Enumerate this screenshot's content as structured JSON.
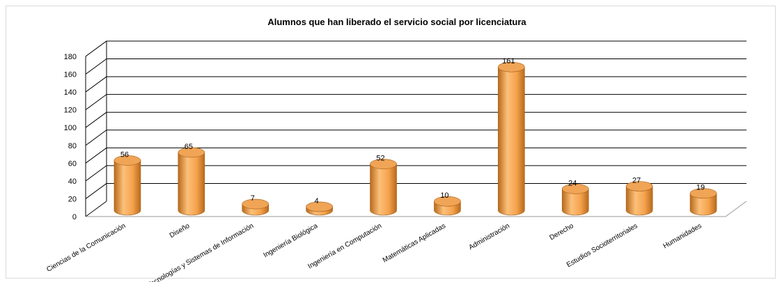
{
  "chart_data": {
    "type": "bar",
    "title": "Alumnos que han liberado el servicio social por licenciatura",
    "xlabel": "",
    "ylabel": "",
    "ylim": [
      0,
      180
    ],
    "yticks": [
      "0",
      "20",
      "40",
      "60",
      "80",
      "100",
      "120",
      "140",
      "160",
      "180"
    ],
    "categories": [
      "Ciencias de la Comunicación",
      "Diseño",
      "Tecnologías y Sistemas de Información",
      "Ingeniería Biológica",
      "Ingeniería en Computación",
      "Matemáticas Aplicadas",
      "Administración",
      "Derecho",
      "Estudios Socioterritoriales",
      "Humanidades"
    ],
    "values": [
      56,
      65,
      7,
      4,
      52,
      10,
      161,
      24,
      27,
      19
    ],
    "data_labels": [
      "56",
      "65",
      "7",
      "4",
      "52",
      "10",
      "161",
      "24",
      "27",
      "19"
    ],
    "grid": true,
    "legend": "none",
    "colors": {
      "bar_light": "#fcc07a",
      "bar_main": "#f5a24c",
      "bar_dark": "#b86a1c",
      "bar_top": "#f0a456",
      "gridline": "#000000",
      "text": "#000000"
    }
  }
}
